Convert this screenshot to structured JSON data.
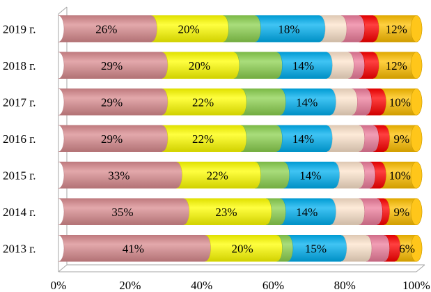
{
  "chart_data": {
    "type": "bar",
    "orientation": "horizontal",
    "stacked": "percent",
    "style": "3d-cylinder",
    "title": "",
    "xlabel": "",
    "ylabel": "",
    "xlim": [
      0,
      100
    ],
    "x_ticks": [
      "0%",
      "20%",
      "40%",
      "60%",
      "80%",
      "100%"
    ],
    "grid": false,
    "legend": "none",
    "categories": [
      "2019 г.",
      "2018 г.",
      "2017 г.",
      "2016 г.",
      "2015 г.",
      "2014 г.",
      "2013 г."
    ],
    "series": [
      {
        "color": "#d98b8f",
        "values": [
          26,
          29,
          29,
          29,
          33,
          35,
          41
        ],
        "labels": [
          "26%",
          "29%",
          "29%",
          "29%",
          "33%",
          "35%",
          "41%"
        ]
      },
      {
        "color": "#ffff00",
        "values": [
          20,
          20,
          22,
          22,
          22,
          23,
          20
        ],
        "labels": [
          "20%",
          "20%",
          "22%",
          "22%",
          "22%",
          "23%",
          "20%"
        ]
      },
      {
        "color": "#8cd24f",
        "values": [
          9,
          12,
          11,
          10,
          8,
          4,
          3
        ],
        "labels": [
          "",
          "",
          "",
          "",
          "",
          "",
          ""
        ]
      },
      {
        "color": "#00b0f0",
        "values": [
          18,
          14,
          14,
          14,
          14,
          14,
          15
        ],
        "labels": [
          "18%",
          "14%",
          "14%",
          "14%",
          "14%",
          "14%",
          "15%"
        ]
      },
      {
        "color": "#fde4cc",
        "values": [
          6,
          6,
          6,
          9,
          7,
          8,
          7
        ],
        "labels": [
          "",
          "",
          "",
          "",
          "",
          "",
          ""
        ]
      },
      {
        "color": "#ee7d9c",
        "values": [
          5,
          3,
          4,
          4,
          3,
          5,
          5
        ],
        "labels": [
          "",
          "",
          "",
          "",
          "",
          "",
          ""
        ]
      },
      {
        "color": "#ff0000",
        "values": [
          4,
          4,
          4,
          3,
          3,
          2,
          3
        ],
        "labels": [
          "",
          "",
          "",
          "",
          "",
          "",
          ""
        ]
      },
      {
        "color": "#ffc000",
        "values": [
          12,
          12,
          10,
          9,
          10,
          9,
          6
        ],
        "labels": [
          "12%",
          "12%",
          "10%",
          "9%",
          "10%",
          "9%",
          "6%"
        ]
      }
    ]
  }
}
